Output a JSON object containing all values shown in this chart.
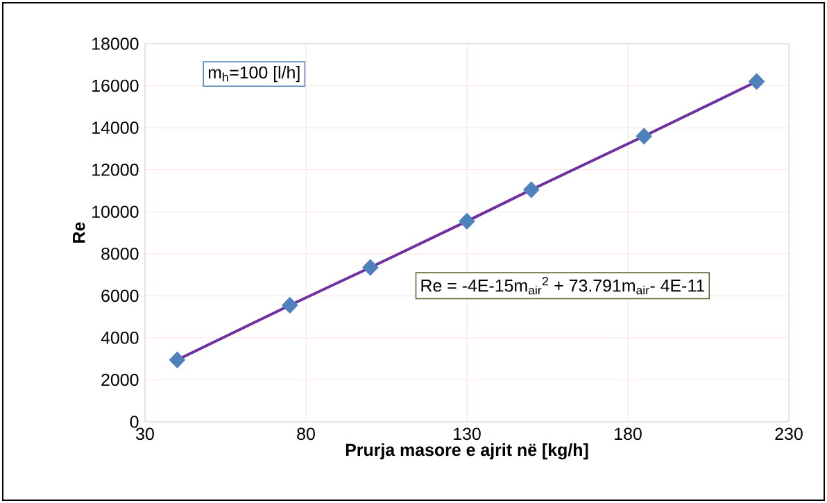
{
  "chart_data": {
    "type": "scatter",
    "xlabel": "Prurja masore e ajrit në [kg/h]",
    "ylabel": "Re",
    "series": [
      {
        "type": "line",
        "color": "#7030a0",
        "marker": "none",
        "line_style": "solid",
        "x": [
          40,
          75,
          100,
          130,
          150,
          185,
          220
        ],
        "values": [
          2950,
          5550,
          7350,
          9550,
          11050,
          13600,
          16200
        ]
      },
      {
        "color": "#4f81bd",
        "marker": "diamond",
        "x": [
          40,
          75,
          100,
          130,
          150,
          185,
          220
        ],
        "values": [
          2950,
          5550,
          7350,
          9550,
          11050,
          13600,
          16200
        ]
      }
    ],
    "xlim": [
      30,
      230
    ],
    "xticks": [
      30,
      80,
      130,
      180,
      230
    ],
    "ylim": [
      0,
      18000
    ],
    "yticks": [
      0,
      2000,
      4000,
      6000,
      8000,
      10000,
      12000,
      14000,
      16000,
      18000
    ],
    "grid": true,
    "annotations": [
      "m$_{h}$=100 [l/h]",
      "Re = -4E-15m$_{air}$$^{2}$ + 73.791m$_{air}$- 4E-11"
    ]
  }
}
